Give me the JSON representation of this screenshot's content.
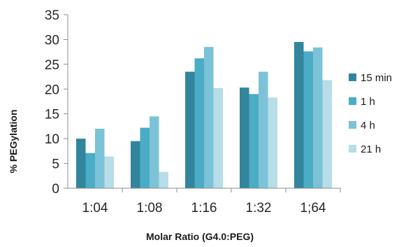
{
  "chart_data": {
    "type": "bar",
    "categories": [
      "1:04",
      "1:08",
      "1:16",
      "1:32",
      "1;64"
    ],
    "series": [
      {
        "name": "15 min",
        "color": "#31859c",
        "values": [
          10.0,
          9.5,
          23.5,
          20.3,
          29.5
        ]
      },
      {
        "name": "1 h",
        "color": "#4bacc6",
        "values": [
          7.1,
          12.2,
          26.2,
          19.0,
          27.6
        ]
      },
      {
        "name": "4 h",
        "color": "#7cc3d7",
        "values": [
          12.0,
          14.5,
          28.5,
          23.5,
          28.4
        ]
      },
      {
        "name": "21 h",
        "color": "#b7dde8",
        "values": [
          6.4,
          3.3,
          20.2,
          18.3,
          21.8
        ]
      }
    ],
    "y_ticks": [
      "0",
      "5",
      "10",
      "15",
      "20",
      "25",
      "30",
      "35"
    ],
    "ylim": [
      0,
      35
    ],
    "xlabel": "Molar Ratio (G4.0:PEG)",
    "ylabel": "% PEGylation",
    "legend_position": "right",
    "grid": false
  }
}
